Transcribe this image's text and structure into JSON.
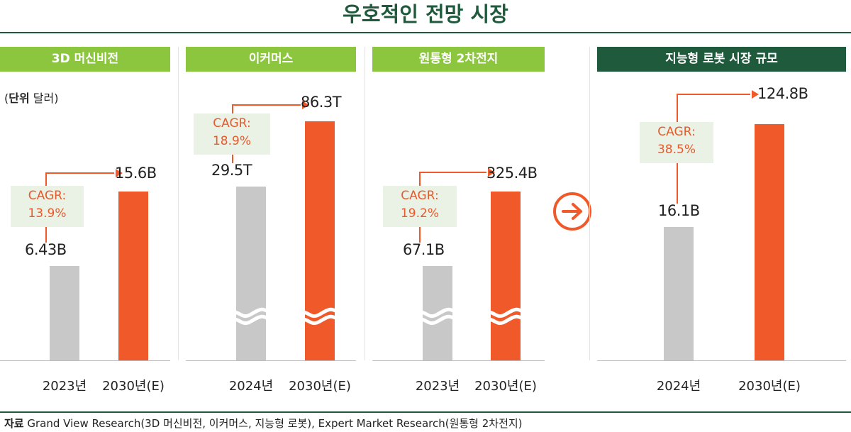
{
  "title": "우호적인 전망 시장",
  "unit_label_bold": "단위",
  "unit_label_rest": " 달러)",
  "unit_label_open": "(",
  "source_label": "자료",
  "source_text": " Grand View Research(3D 머신비전, 이커머스, 지능형 로봇), Expert Market Research(원통형 2차전지)",
  "colors": {
    "header_green": "#8cc63f",
    "header_dark": "#1f5a3d",
    "bar_gray": "#c8c8c8",
    "bar_orange": "#f05a2a",
    "cagr_bg": "#eaf2e6",
    "cagr_text": "#e85a2c"
  },
  "chart_data": [
    {
      "type": "bar",
      "title": "3D 머신비전",
      "categories": [
        "2023년",
        "2030년(E)"
      ],
      "values": [
        6.43,
        15.6
      ],
      "value_labels": [
        "6.43B",
        "15.6B"
      ],
      "cagr_label": "CAGR:",
      "cagr_value": "13.9%",
      "axis_break": false
    },
    {
      "type": "bar",
      "title": "이커머스",
      "categories": [
        "2024년",
        "2030년(E)"
      ],
      "values": [
        29.5,
        86.3
      ],
      "value_labels": [
        "29.5T",
        "86.3T"
      ],
      "cagr_label": "CAGR:",
      "cagr_value": "18.9%",
      "axis_break": true
    },
    {
      "type": "bar",
      "title": "원통형  2차전지",
      "categories": [
        "2023년",
        "2030년(E)"
      ],
      "values": [
        67.1,
        325.4
      ],
      "value_labels": [
        "67.1B",
        "325.4B"
      ],
      "cagr_label": "CAGR:",
      "cagr_value": "19.2%",
      "axis_break": true
    },
    {
      "type": "bar",
      "title": "지능형 로봇 시장 규모",
      "categories": [
        "2024년",
        "2030년(E)"
      ],
      "values": [
        16.1,
        124.8
      ],
      "value_labels": [
        "16.1B",
        "124.8B"
      ],
      "cagr_label": "CAGR:",
      "cagr_value": "38.5%",
      "axis_break": false
    }
  ]
}
